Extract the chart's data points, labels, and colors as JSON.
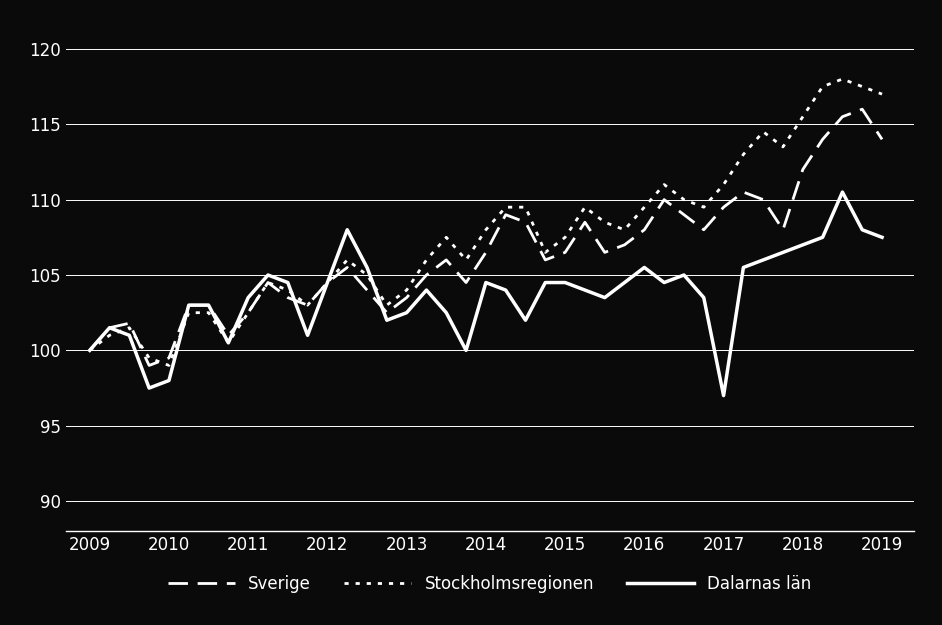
{
  "background_color": "#0a0a0a",
  "text_color": "#ffffff",
  "grid_color": "#ffffff",
  "ylim": [
    88,
    122
  ],
  "yticks": [
    90,
    95,
    100,
    105,
    110,
    115,
    120
  ],
  "xlim": [
    2008.7,
    2019.4
  ],
  "xlabel_years": [
    "2009",
    "2010",
    "2011",
    "2012",
    "2013",
    "2014",
    "2015",
    "2016",
    "2017",
    "2018",
    "2019"
  ],
  "xtick_positions": [
    2009,
    2010,
    2011,
    2012,
    2013,
    2014,
    2015,
    2016,
    2017,
    2018,
    2019
  ],
  "sverige": [
    100.0,
    101.5,
    101.8,
    99.0,
    99.5,
    103.0,
    103.0,
    101.0,
    102.5,
    104.5,
    103.5,
    103.0,
    104.5,
    105.5,
    104.0,
    102.5,
    103.5,
    105.0,
    106.0,
    104.5,
    106.5,
    109.0,
    108.5,
    106.0,
    106.5,
    108.5,
    106.5,
    107.0,
    108.0,
    110.0,
    109.0,
    108.0,
    109.5,
    110.5,
    110.0,
    108.0,
    112.0,
    114.0,
    115.5,
    116.0,
    114.0
  ],
  "stockholm": [
    100.0,
    101.0,
    101.5,
    99.5,
    99.0,
    102.5,
    102.5,
    100.5,
    102.5,
    104.5,
    104.0,
    103.0,
    104.5,
    106.0,
    105.0,
    103.0,
    104.0,
    106.0,
    107.5,
    106.0,
    108.0,
    109.5,
    109.5,
    106.5,
    107.5,
    109.5,
    108.5,
    108.0,
    109.5,
    111.0,
    110.0,
    109.5,
    111.0,
    113.0,
    114.5,
    113.5,
    115.5,
    117.5,
    118.0,
    117.5,
    117.0
  ],
  "dalarna": [
    100.0,
    101.5,
    101.0,
    97.5,
    98.0,
    103.0,
    103.0,
    100.5,
    103.5,
    105.0,
    104.5,
    101.0,
    104.5,
    108.0,
    105.5,
    102.0,
    102.5,
    104.0,
    102.5,
    100.0,
    104.5,
    104.0,
    102.0,
    104.5,
    104.5,
    104.0,
    103.5,
    104.5,
    105.5,
    104.5,
    105.0,
    103.5,
    97.0,
    105.5,
    106.0,
    106.5,
    107.0,
    107.5,
    110.5,
    108.0,
    107.5
  ],
  "legend_labels": [
    "Sverige",
    "Stockholmsregionen",
    "Dalarnas län"
  ],
  "line_sverige_style": "--",
  "line_stockholm_style": ":",
  "line_dalarna_style": "-",
  "linewidth_sverige": 2.0,
  "linewidth_stockholm": 2.0,
  "linewidth_dalarna": 2.5,
  "fontsize_ticks": 12,
  "fontsize_legend": 12
}
